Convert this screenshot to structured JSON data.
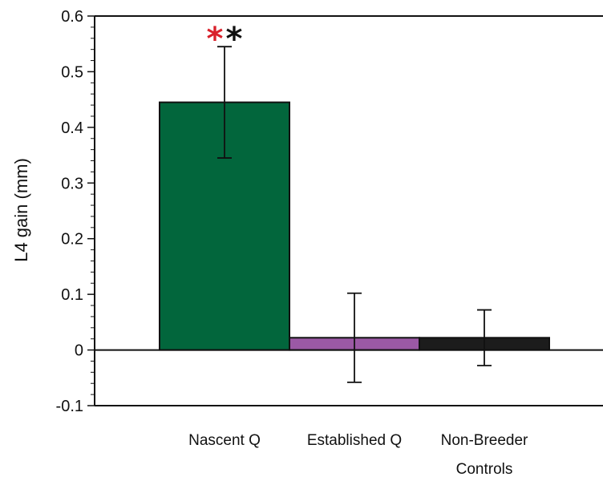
{
  "chart_data": {
    "type": "bar",
    "title": "",
    "xlabel": "",
    "ylabel": "L4 gain (mm)",
    "ylim": [
      -0.1,
      0.6
    ],
    "yticks": [
      -0.1,
      0,
      0.1,
      0.2,
      0.3,
      0.4,
      0.5,
      0.6
    ],
    "ytick_labels": [
      "-0.1",
      "0",
      "0.1",
      "0.2",
      "0.3",
      "0.4",
      "0.5",
      "0.6"
    ],
    "grid": false,
    "legend": "none",
    "categories": [
      {
        "lines": [
          "Nascent Q"
        ]
      },
      {
        "lines": [
          "Established Q"
        ]
      },
      {
        "lines": [
          "Non-Breeder",
          "Controls"
        ]
      }
    ],
    "values": [
      0.445,
      0.022,
      0.022
    ],
    "errors": [
      0.1,
      0.08,
      0.05
    ],
    "colors": [
      "#02663c",
      "#9b59a5",
      "#1c1c1c"
    ],
    "significance": [
      {
        "category": 0,
        "marks": [
          {
            "symbol": "*",
            "color": "#d9202a"
          },
          {
            "symbol": "*",
            "color": "#111111"
          }
        ]
      }
    ]
  }
}
